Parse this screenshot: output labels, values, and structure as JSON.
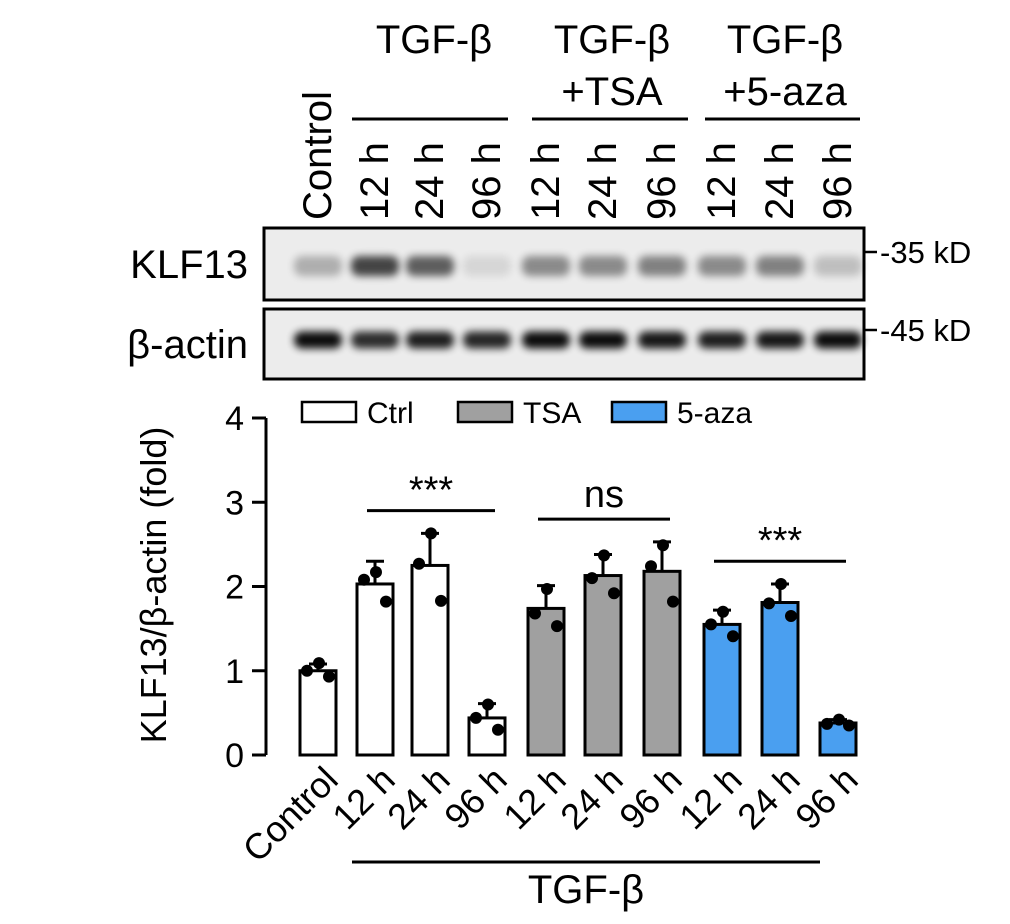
{
  "blot": {
    "header_groups": [
      {
        "line1": "TGF-β",
        "line2": ""
      },
      {
        "line1": "TGF-β",
        "line2": "+TSA"
      },
      {
        "line1": "TGF-β",
        "line2": "+5-aza"
      }
    ],
    "lanes": [
      "Control",
      "12 h",
      "24 h",
      "96 h",
      "12 h",
      "24 h",
      "96 h",
      "12 h",
      "24 h",
      "96 h"
    ],
    "rows": [
      {
        "label": "KLF13",
        "marker": "35 kD",
        "intensity": [
          0.35,
          0.95,
          0.8,
          0.12,
          0.55,
          0.55,
          0.6,
          0.55,
          0.6,
          0.25
        ]
      },
      {
        "label": "β-actin",
        "marker": "45 kD",
        "intensity": [
          1.0,
          0.85,
          0.92,
          0.88,
          1.0,
          1.0,
          0.95,
          0.92,
          0.95,
          1.0
        ]
      }
    ]
  },
  "chart_data": {
    "type": "bar",
    "ylabel": "KLF13/β-actin (fold)",
    "xlabel": "",
    "ylim": [
      0,
      4
    ],
    "yticks": [
      0,
      1,
      2,
      3,
      4
    ],
    "categories": [
      "Control",
      "12 h",
      "24 h",
      "96 h",
      "12 h",
      "24 h",
      "96 h",
      "12 h",
      "24 h",
      "96 h"
    ],
    "x_group_label": "TGF-β",
    "legend": [
      {
        "name": "Ctrl",
        "color": "#ffffff"
      },
      {
        "name": "TSA",
        "color": "#a0a0a0"
      },
      {
        "name": "5-aza",
        "color": "#4a9ff0"
      }
    ],
    "legend_position": "top",
    "bars": [
      {
        "value": 1.0,
        "err": 0.08,
        "fill": "#ffffff",
        "points": [
          1.09,
          1.0,
          0.93
        ]
      },
      {
        "value": 2.03,
        "err": 0.27,
        "fill": "#ffffff",
        "points": [
          2.17,
          2.08,
          1.82
        ]
      },
      {
        "value": 2.25,
        "err": 0.38,
        "fill": "#ffffff",
        "points": [
          2.63,
          2.27,
          1.83
        ]
      },
      {
        "value": 0.44,
        "err": 0.17,
        "fill": "#ffffff",
        "points": [
          0.6,
          0.44,
          0.3
        ]
      },
      {
        "value": 1.74,
        "err": 0.27,
        "fill": "#a0a0a0",
        "points": [
          1.97,
          1.68,
          1.53
        ]
      },
      {
        "value": 2.13,
        "err": 0.25,
        "fill": "#a0a0a0",
        "points": [
          2.37,
          2.1,
          1.92
        ]
      },
      {
        "value": 2.18,
        "err": 0.35,
        "fill": "#a0a0a0",
        "points": [
          2.49,
          2.24,
          1.82
        ]
      },
      {
        "value": 1.55,
        "err": 0.17,
        "fill": "#4a9ff0",
        "points": [
          1.7,
          1.55,
          1.41
        ]
      },
      {
        "value": 1.81,
        "err": 0.22,
        "fill": "#4a9ff0",
        "points": [
          2.03,
          1.8,
          1.65
        ]
      },
      {
        "value": 0.38,
        "err": 0.04,
        "fill": "#4a9ff0",
        "points": [
          0.42,
          0.37,
          0.35
        ]
      }
    ],
    "significance": [
      {
        "label": "***",
        "from": 1,
        "to": 3,
        "y": 2.9
      },
      {
        "label": "ns",
        "from": 4,
        "to": 6,
        "y": 2.8
      },
      {
        "label": "***",
        "from": 7,
        "to": 9,
        "y": 2.3
      }
    ]
  }
}
